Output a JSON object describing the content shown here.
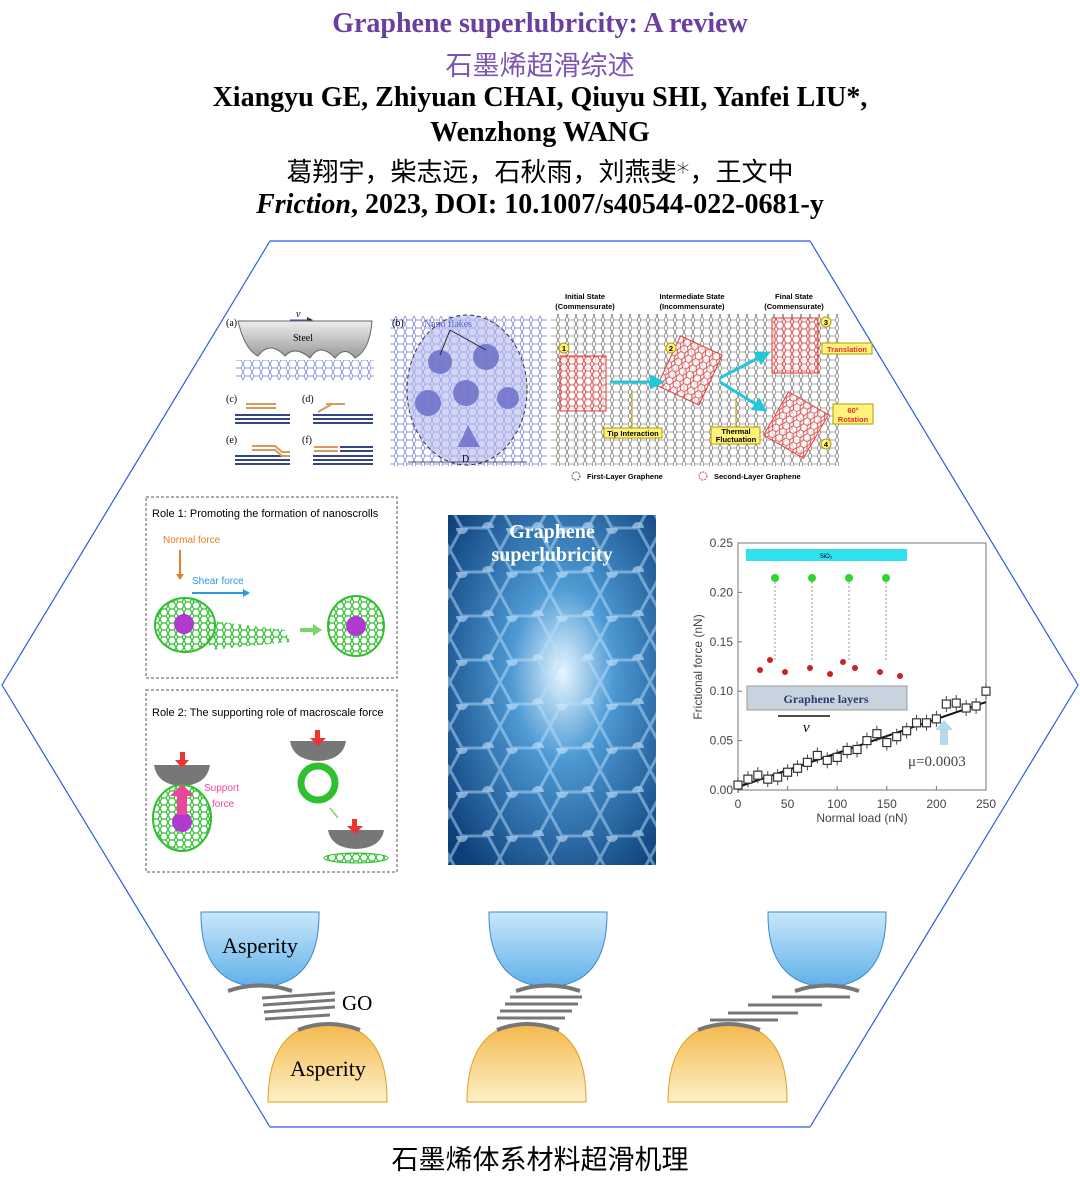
{
  "header": {
    "title_en": "Graphene superlubricity: A review",
    "title_zh": "石墨烯超滑综述",
    "authors_en_1": "Xiangyu GE, Zhiyuan CHAI, Qiuyu SHI, Yanfei LIU*,",
    "authors_en_2": "Wenzhong WANG",
    "authors_zh": "葛翔宇，柴志远，石秋雨，刘燕斐*，王文中",
    "journal": "Friction",
    "citation_rest": ", 2023, DOI: 10.1007/s40544-022-0681-y"
  },
  "colors": {
    "title": "#6b3fa0",
    "hexagon": "#2b5ce6",
    "graphene_red": "#e23b3b",
    "arrow_cyan": "#22c7d8",
    "asperity_blue": "#8cc8f0",
    "asperity_yellow": "#f7cf6a"
  },
  "panel_top": {
    "a_label": "(a)",
    "velocity": "v",
    "steel": "Steel",
    "c": "(c)",
    "d": "(d)",
    "e": "(e)",
    "f": "(f)",
    "b_label": "(b)",
    "nano_flakes": "Nano flakes",
    "diameter": "D",
    "state_initial": "Initial State",
    "state_initial_sub": "(Commensurate)",
    "state_intermediate": "Intermediate State",
    "state_intermediate_sub": "(Incommensurate)",
    "state_final": "Final State",
    "state_final_sub": "(Commensurate)",
    "n1": "1",
    "n2": "2",
    "n3": "3",
    "n4": "4",
    "translation": "Translation",
    "rotation_1": "60°",
    "rotation_2": "Rotation",
    "tip_interaction": "Tip Interaction",
    "thermal_1": "Thermal",
    "thermal_2": "Fluctuation",
    "legend_first": "First-Layer Graphene",
    "legend_second": "Second-Layer Graphene"
  },
  "role1": {
    "title": "Role 1: Promoting the formation of nanoscrolls",
    "normal_force": "Normal  force",
    "shear_force": "Shear  force"
  },
  "role2": {
    "title": "Role 2: The supporting role of macroscale force",
    "support_1": "Support",
    "support_2": "force"
  },
  "center_image": {
    "text_1": "Graphene",
    "text_2": "superlubricity"
  },
  "chart_data": {
    "type": "scatter",
    "xlabel": "Normal load (nN)",
    "ylabel": "Frictional force (nN)",
    "xlim": [
      0,
      250
    ],
    "ylim": [
      0,
      0.25
    ],
    "xticks": [
      "0",
      "50",
      "100",
      "150",
      "200",
      "250"
    ],
    "yticks": [
      "0.00",
      "0.05",
      "0.10",
      "0.15",
      "0.20",
      "0.25"
    ],
    "x": [
      0,
      10,
      20,
      30,
      40,
      50,
      60,
      70,
      80,
      90,
      100,
      110,
      120,
      130,
      140,
      150,
      160,
      170,
      180,
      190,
      200,
      210,
      220,
      230,
      240,
      250
    ],
    "y": [
      0.005,
      0.011,
      0.015,
      0.011,
      0.013,
      0.018,
      0.022,
      0.028,
      0.035,
      0.03,
      0.033,
      0.04,
      0.041,
      0.05,
      0.057,
      0.048,
      0.054,
      0.06,
      0.068,
      0.068,
      0.072,
      0.087,
      0.088,
      0.083,
      0.085,
      0.1
    ],
    "fit": {
      "x": [
        0,
        250
      ],
      "y": [
        0.003,
        0.089
      ]
    },
    "annotation": "μ=0.0003",
    "inset": {
      "sio2": "SiO₂",
      "graphene_layers": "Graphene layers",
      "velocity": "v"
    }
  },
  "bottom": {
    "asperity_top": "Asperity",
    "asperity_bottom": "Asperity",
    "go": "GO"
  },
  "caption": "石墨烯体系材料超滑机理"
}
